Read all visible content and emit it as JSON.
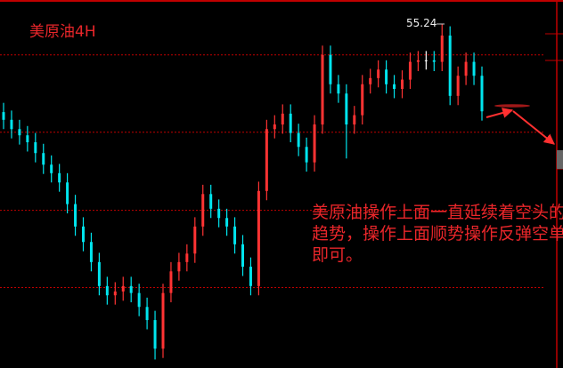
{
  "title": "美原油4H",
  "annotation": "美原油操作上面一直延续着空头的趋势，操作上面顺势操作反弹空单即可。",
  "colors": {
    "background": "#000000",
    "up": "#ff3333",
    "down": "#00e5ee",
    "grid": "#c00000",
    "text": "#e8262a"
  },
  "chart_data": {
    "type": "candlestick",
    "title": "美原油4H",
    "ylim": [
      50.79,
      55.55
    ],
    "grid_levels": [
      54.84,
      53.84,
      52.83,
      51.83
    ],
    "peak_label": {
      "text": "55.24",
      "value": 55.24,
      "candle_index": 55
    },
    "projection": "down",
    "candles": [
      [
        54.1,
        54.22,
        53.88,
        54.0
      ],
      [
        54.0,
        54.12,
        53.76,
        53.88
      ],
      [
        53.88,
        54.0,
        53.68,
        53.8
      ],
      [
        53.8,
        53.92,
        53.59,
        53.71
      ],
      [
        53.71,
        53.83,
        53.45,
        53.57
      ],
      [
        53.57,
        53.69,
        53.3,
        53.42
      ],
      [
        53.42,
        53.54,
        53.19,
        53.31
      ],
      [
        53.31,
        53.43,
        53.07,
        53.19
      ],
      [
        53.19,
        53.31,
        52.79,
        52.91
      ],
      [
        52.91,
        53.03,
        52.5,
        52.62
      ],
      [
        52.62,
        52.74,
        52.3,
        52.42
      ],
      [
        52.42,
        52.54,
        52.04,
        52.16
      ],
      [
        52.16,
        52.28,
        51.73,
        51.85
      ],
      [
        51.85,
        51.97,
        51.61,
        51.73
      ],
      [
        51.73,
        51.9,
        51.61,
        51.78
      ],
      [
        51.78,
        51.97,
        51.66,
        51.85
      ],
      [
        51.85,
        51.97,
        51.64,
        51.76
      ],
      [
        51.76,
        51.88,
        51.46,
        51.58
      ],
      [
        51.58,
        51.7,
        51.29,
        51.41
      ],
      [
        51.41,
        51.53,
        50.9,
        51.04
      ],
      [
        51.04,
        51.88,
        50.92,
        51.76
      ],
      [
        51.76,
        52.16,
        51.64,
        52.04
      ],
      [
        52.04,
        52.28,
        51.92,
        52.16
      ],
      [
        52.16,
        52.39,
        52.04,
        52.27
      ],
      [
        52.27,
        52.74,
        52.15,
        52.62
      ],
      [
        52.62,
        53.16,
        52.5,
        53.04
      ],
      [
        53.04,
        53.16,
        52.73,
        52.85
      ],
      [
        52.85,
        52.97,
        52.61,
        52.73
      ],
      [
        52.73,
        52.85,
        52.5,
        52.62
      ],
      [
        52.62,
        52.74,
        52.27,
        52.39
      ],
      [
        52.39,
        52.51,
        51.98,
        52.1
      ],
      [
        52.1,
        52.22,
        51.73,
        51.85
      ],
      [
        51.85,
        53.2,
        51.73,
        53.08
      ],
      [
        53.08,
        54.0,
        52.96,
        53.88
      ],
      [
        53.88,
        54.06,
        53.76,
        53.94
      ],
      [
        53.94,
        54.2,
        53.82,
        54.08
      ],
      [
        54.08,
        54.2,
        53.71,
        53.83
      ],
      [
        53.83,
        53.95,
        53.53,
        53.65
      ],
      [
        53.65,
        53.77,
        53.33,
        53.45
      ],
      [
        53.45,
        54.06,
        53.33,
        53.94
      ],
      [
        53.94,
        54.96,
        53.82,
        54.84
      ],
      [
        54.84,
        54.96,
        54.34,
        54.46
      ],
      [
        54.46,
        54.58,
        54.22,
        54.34
      ],
      [
        54.34,
        54.46,
        53.5,
        53.94
      ],
      [
        53.94,
        54.18,
        53.82,
        54.06
      ],
      [
        54.06,
        54.58,
        53.94,
        54.46
      ],
      [
        54.46,
        54.66,
        54.34,
        54.54
      ],
      [
        54.54,
        54.77,
        54.42,
        54.65
      ],
      [
        54.65,
        54.77,
        54.34,
        54.46
      ],
      [
        54.46,
        54.58,
        54.28,
        54.4
      ],
      [
        54.4,
        54.64,
        54.28,
        54.52
      ],
      [
        54.52,
        54.87,
        54.4,
        54.75
      ],
      [
        54.75,
        54.89,
        54.63,
        54.77
      ],
      [
        54.77,
        54.89,
        54.65,
        54.77
      ],
      [
        54.77,
        54.89,
        54.63,
        54.75
      ],
      [
        54.75,
        55.24,
        54.63,
        55.09
      ],
      [
        55.09,
        55.21,
        54.19,
        54.31
      ],
      [
        54.31,
        54.69,
        54.19,
        54.57
      ],
      [
        54.57,
        54.87,
        54.45,
        54.75
      ],
      [
        54.75,
        54.87,
        54.45,
        54.57
      ],
      [
        54.57,
        54.69,
        53.99,
        54.11
      ]
    ]
  }
}
